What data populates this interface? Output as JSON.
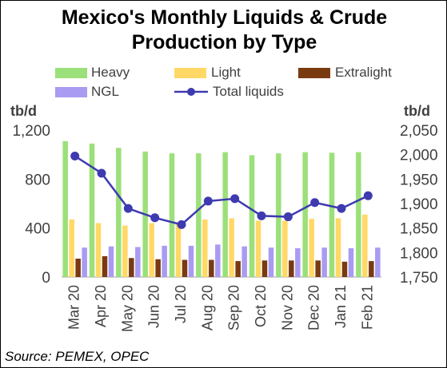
{
  "title_line1": "Mexico's Monthly Liquids & Crude",
  "title_line2": "Production by Type",
  "unit_left": "tb/d",
  "unit_right": "tb/d",
  "source": "Source: PEMEX, OPEC",
  "colors": {
    "heavy": "#9BE07A",
    "light": "#FFD866",
    "extralight": "#7A3A10",
    "ngl": "#A99BF2",
    "total": "#3E3AB0"
  },
  "chart_data": {
    "type": "bar",
    "categories": [
      "Mar 20",
      "Apr 20",
      "May 20",
      "Jun 20",
      "Jul 20",
      "Aug 20",
      "Sep 20",
      "Oct 20",
      "Nov 20",
      "Dec 20",
      "Jan 21",
      "Feb 21"
    ],
    "series": [
      {
        "name": "Heavy",
        "axis": "left",
        "type": "bar",
        "values": [
          1110,
          1090,
          1055,
          1025,
          1010,
          1010,
          1020,
          995,
          1010,
          1020,
          1015,
          1020
        ]
      },
      {
        "name": "Light",
        "axis": "left",
        "type": "bar",
        "values": [
          470,
          440,
          420,
          440,
          445,
          470,
          480,
          460,
          460,
          475,
          480,
          510
        ]
      },
      {
        "name": "Extralight",
        "axis": "left",
        "type": "bar",
        "values": [
          150,
          170,
          155,
          145,
          140,
          140,
          130,
          135,
          135,
          135,
          125,
          130
        ]
      },
      {
        "name": "NGL",
        "axis": "left",
        "type": "bar",
        "values": [
          240,
          250,
          245,
          255,
          255,
          265,
          250,
          240,
          235,
          240,
          235,
          240
        ]
      },
      {
        "name": "Total liquids",
        "axis": "right",
        "type": "line",
        "values": [
          1997,
          1962,
          1890,
          1871,
          1857,
          1905,
          1910,
          1875,
          1873,
          1902,
          1890,
          1916
        ]
      }
    ],
    "y_left": {
      "min": 0,
      "max": 1200,
      "ticks": [
        "0",
        "400",
        "800",
        "1,200"
      ],
      "tick_values": [
        0,
        400,
        800,
        1200
      ]
    },
    "y_right": {
      "min": 1750,
      "max": 2050,
      "ticks": [
        "1,750",
        "1,800",
        "1,850",
        "1,900",
        "1,950",
        "2,000",
        "2,050"
      ],
      "tick_values": [
        1750,
        1800,
        1850,
        1900,
        1950,
        2000,
        2050
      ]
    },
    "grid": false,
    "legend_position": "top"
  }
}
